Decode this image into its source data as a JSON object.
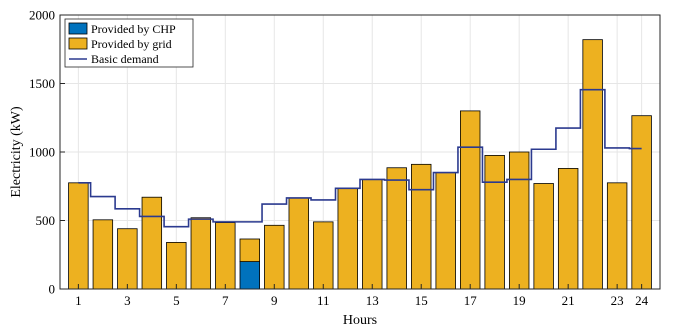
{
  "chart_data": {
    "type": "bar",
    "title": "",
    "xlabel": "Hours",
    "ylabel": "Electricity (kW)",
    "ylim": [
      0,
      2000
    ],
    "yticks": [
      0,
      500,
      1000,
      1500,
      2000
    ],
    "xticks": [
      1,
      3,
      5,
      7,
      9,
      11,
      13,
      15,
      17,
      19,
      21,
      23,
      24
    ],
    "grid": true,
    "legend_position": "top-left",
    "categories": [
      1,
      2,
      3,
      4,
      5,
      6,
      7,
      8,
      9,
      10,
      11,
      12,
      13,
      14,
      15,
      16,
      17,
      18,
      19,
      20,
      21,
      22,
      23,
      24
    ],
    "series": [
      {
        "name": "Provided by CHP",
        "kind": "bar",
        "stack": "supply",
        "color": "#0072BD",
        "values": [
          0,
          0,
          0,
          0,
          0,
          0,
          0,
          200,
          0,
          0,
          0,
          0,
          0,
          0,
          0,
          0,
          0,
          0,
          0,
          0,
          0,
          0,
          0,
          0
        ]
      },
      {
        "name": "Provided by grid",
        "kind": "bar",
        "stack": "supply",
        "color": "#EDB120",
        "values": [
          775,
          505,
          440,
          670,
          340,
          520,
          485,
          165,
          465,
          665,
          490,
          735,
          800,
          885,
          910,
          850,
          1300,
          975,
          1000,
          770,
          880,
          1820,
          775,
          1265
        ]
      },
      {
        "name": "Basic demand",
        "kind": "step",
        "color": "#2B3A8F",
        "values": [
          775,
          675,
          585,
          530,
          455,
          510,
          490,
          490,
          620,
          665,
          650,
          735,
          800,
          795,
          725,
          850,
          1035,
          780,
          800,
          1020,
          1175,
          1455,
          1030,
          1025
        ]
      }
    ]
  }
}
